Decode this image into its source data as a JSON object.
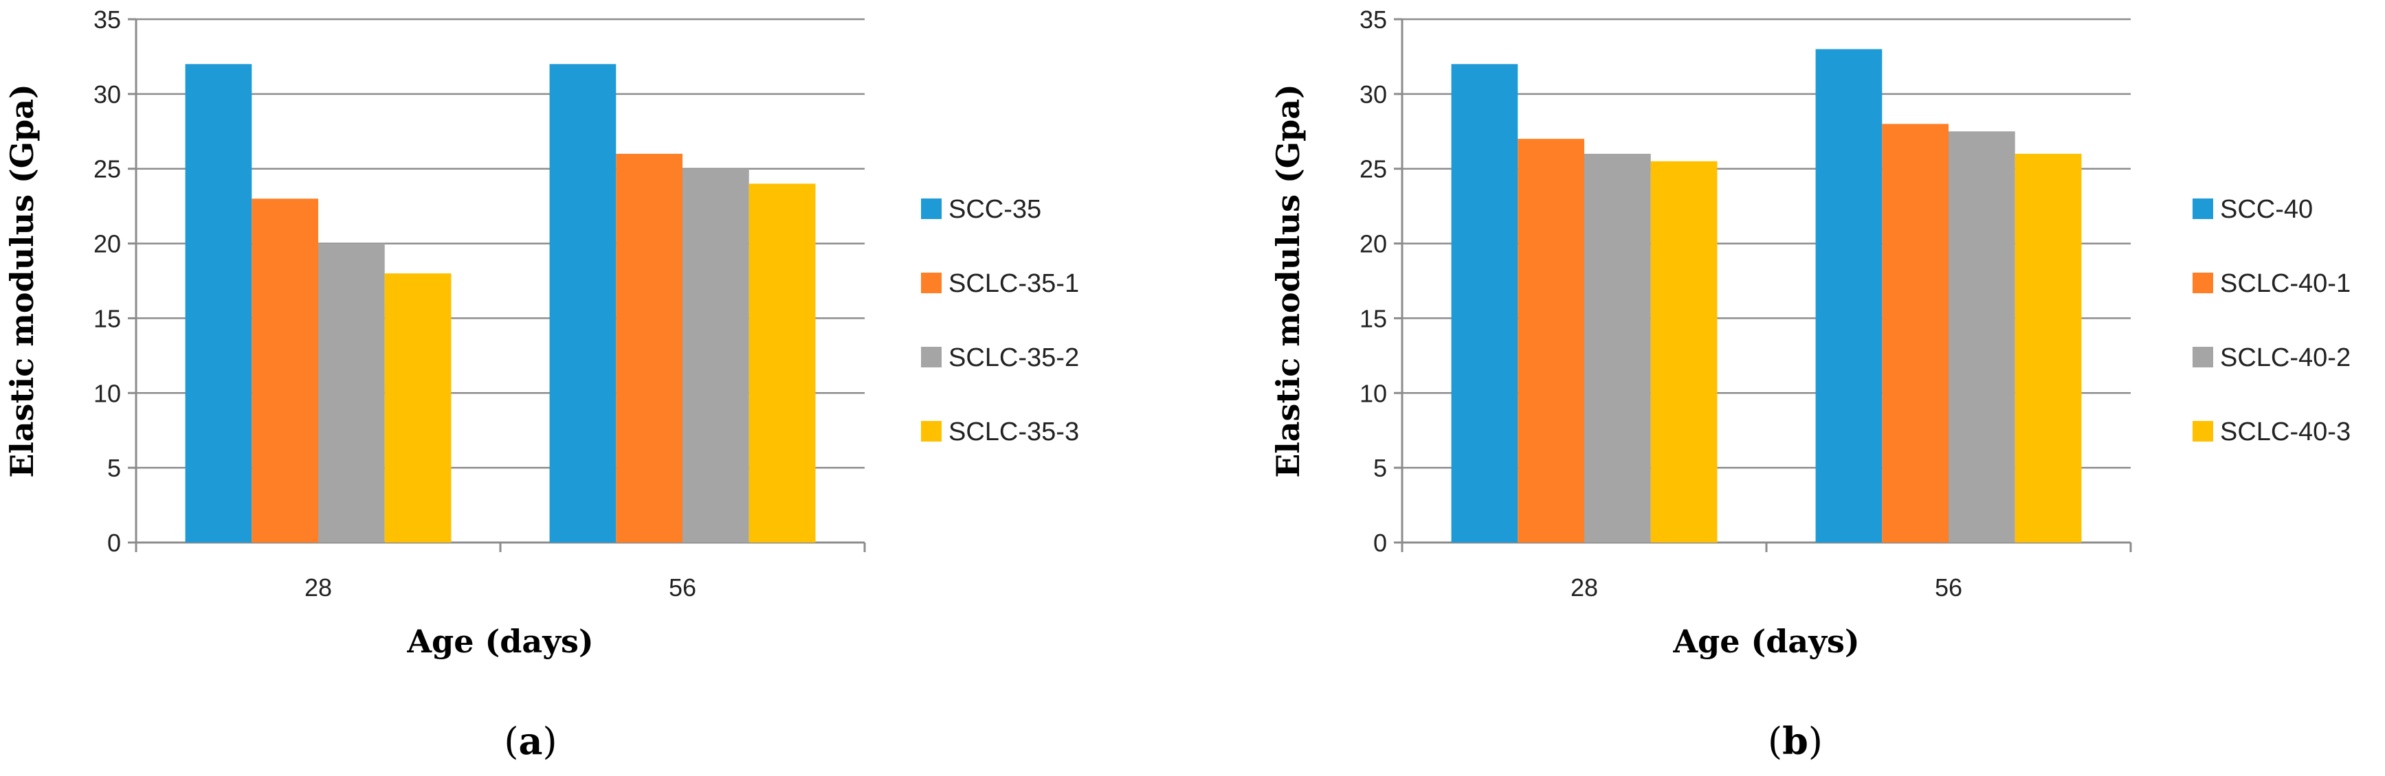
{
  "colors": {
    "SCC": "#1E9BD7",
    "SCLC1": "#FF7F27",
    "SCLC2": "#A5A5A5",
    "SCLC3": "#FFC000"
  },
  "chart_data": [
    {
      "type": "bar",
      "panel": "a",
      "caption_open": "(",
      "caption_letter": "a",
      "caption_close": ")",
      "categories": [
        "28",
        "56"
      ],
      "series": [
        {
          "name": "SCC-35",
          "color_key": "SCC",
          "values": [
            32,
            32
          ]
        },
        {
          "name": "SCLC-35-1",
          "color_key": "SCLC1",
          "values": [
            23,
            26
          ]
        },
        {
          "name": "SCLC-35-2",
          "color_key": "SCLC2",
          "values": [
            20,
            25
          ]
        },
        {
          "name": "SCLC-35-3",
          "color_key": "SCLC3",
          "values": [
            18,
            24
          ]
        }
      ],
      "xlabel": "Age (days)",
      "ylabel": "Elastic modulus (Gpa)",
      "ylim": [
        0,
        35
      ],
      "yticks": [
        0,
        5,
        10,
        15,
        20,
        25,
        30,
        35
      ],
      "grid": true,
      "legend": "right"
    },
    {
      "type": "bar",
      "panel": "b",
      "caption_open": "(",
      "caption_letter": "b",
      "caption_close": ")",
      "categories": [
        "28",
        "56"
      ],
      "series": [
        {
          "name": "SCC-40",
          "color_key": "SCC",
          "values": [
            32,
            33
          ]
        },
        {
          "name": "SCLC-40-1",
          "color_key": "SCLC1",
          "values": [
            27,
            28
          ]
        },
        {
          "name": "SCLC-40-2",
          "color_key": "SCLC2",
          "values": [
            26,
            27.5
          ]
        },
        {
          "name": "SCLC-40-3",
          "color_key": "SCLC3",
          "values": [
            25.5,
            26
          ]
        }
      ],
      "xlabel": "Age (days)",
      "ylabel": "Elastic modulus (Gpa)",
      "ylim": [
        0,
        35
      ],
      "yticks": [
        0,
        5,
        10,
        15,
        20,
        25,
        30,
        35
      ],
      "grid": true,
      "legend": "right"
    }
  ]
}
